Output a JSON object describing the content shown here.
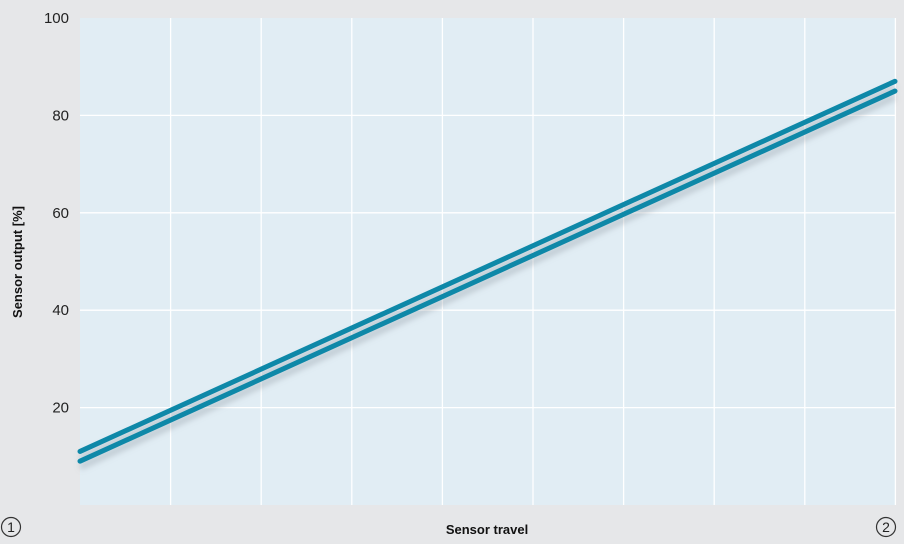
{
  "chart_data": {
    "type": "line",
    "xlabel": "Sensor travel",
    "ylabel": "Sensor output [%]",
    "ylim": [
      0,
      100
    ],
    "y_ticks": [
      20,
      40,
      60,
      80,
      100
    ],
    "xlim": [
      0,
      1
    ],
    "x_marker_start": "1",
    "x_marker_end": "2",
    "grid": true,
    "series": [
      {
        "x": [
          0,
          1
        ],
        "y": [
          11,
          87
        ]
      },
      {
        "x": [
          0,
          1
        ],
        "y": [
          9,
          85
        ]
      }
    ],
    "colors": {
      "line": "#0e88a8",
      "plot_background": "#e1edf4",
      "gridline": "#ffffff",
      "page_background": "#e6e7e9"
    }
  }
}
